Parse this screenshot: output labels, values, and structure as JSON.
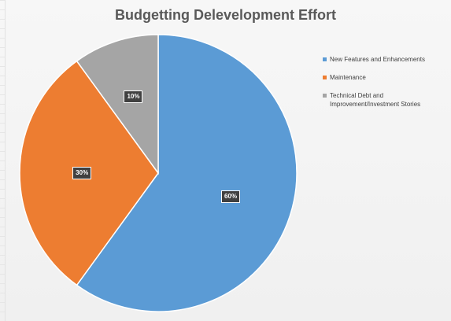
{
  "chart_data": {
    "type": "pie",
    "title": "Budgetting Delevelopment Effort",
    "categories": [
      "New Features and Enhancements",
      "Maintenance",
      "Technical Debt and Improvement/Investment Stories"
    ],
    "values": [
      60,
      30,
      10
    ],
    "data_labels": [
      "60%",
      "30%",
      "10%"
    ],
    "colors": [
      "#5b9bd5",
      "#ed7d31",
      "#a5a5a5"
    ],
    "legend_position": "right"
  }
}
